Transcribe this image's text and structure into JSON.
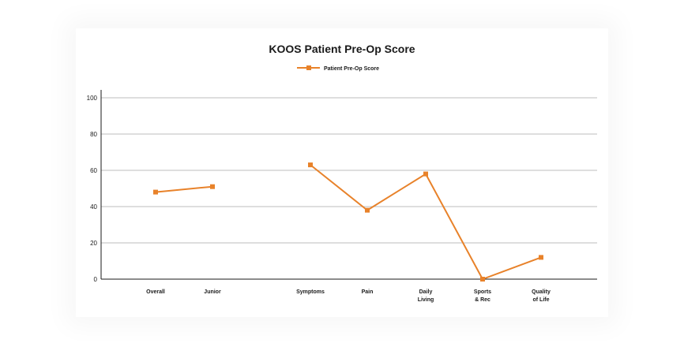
{
  "chart_data": {
    "type": "line",
    "title": "KOOS Patient Pre-Op Score",
    "xlabel": "",
    "ylabel": "",
    "ylim": [
      0,
      100
    ],
    "yticks": [
      "0",
      "20",
      "40",
      "60",
      "80",
      "100"
    ],
    "grid": true,
    "legend_position": "top-center",
    "color": "#e8822a",
    "categories": [
      [
        "Overall"
      ],
      [
        "Junior"
      ],
      [
        ""
      ],
      [
        "Symptoms"
      ],
      [
        "Pain"
      ],
      [
        "Daily",
        "Living"
      ],
      [
        "Sports",
        "& Rec"
      ],
      [
        "Quality",
        "of Life"
      ]
    ],
    "series": [
      {
        "name": "Patient Pre-Op Score",
        "values": [
          48,
          51,
          null,
          63,
          38,
          58,
          0,
          12
        ]
      }
    ]
  }
}
